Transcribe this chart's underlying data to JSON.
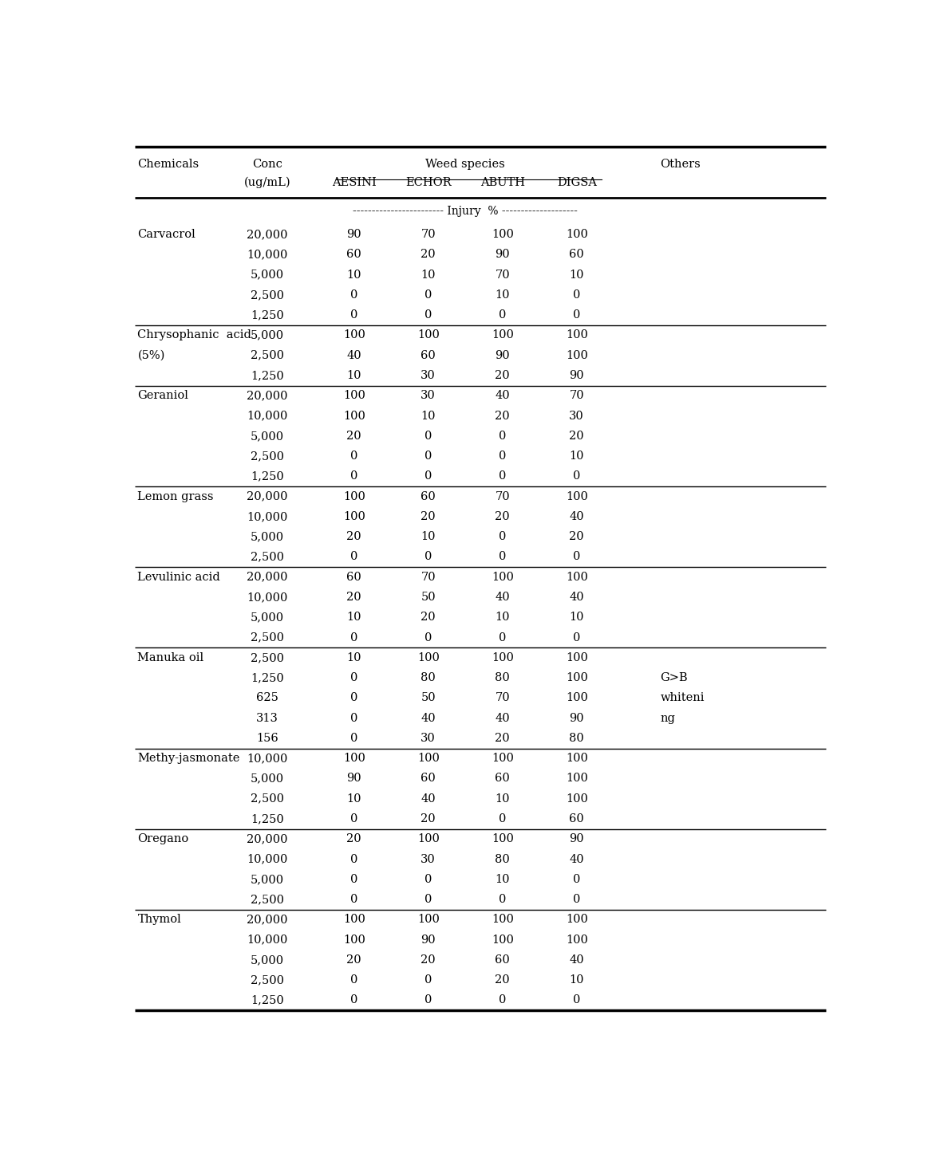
{
  "col_headers_row1": [
    "Chemicals",
    "Conc",
    "Weed species",
    "Others"
  ],
  "col_headers_row2": [
    "",
    "(ug/mL)",
    "AESINI",
    "ECHOR",
    "ABUTH",
    "DIGSA",
    ""
  ],
  "injury_label": "------------------------ Injury  % --------------------",
  "rows": [
    [
      "Carvacrol",
      "20,000",
      "90",
      "70",
      "100",
      "100",
      ""
    ],
    [
      "",
      "10,000",
      "60",
      "20",
      "90",
      "60",
      ""
    ],
    [
      "",
      "5,000",
      "10",
      "10",
      "70",
      "10",
      ""
    ],
    [
      "",
      "2,500",
      "0",
      "0",
      "10",
      "0",
      ""
    ],
    [
      "",
      "1,250",
      "0",
      "0",
      "0",
      "0",
      ""
    ],
    [
      "Chrysophanic  acid",
      "5,000",
      "100",
      "100",
      "100",
      "100",
      ""
    ],
    [
      "(5%)",
      "2,500",
      "40",
      "60",
      "90",
      "100",
      ""
    ],
    [
      "",
      "1,250",
      "10",
      "30",
      "20",
      "90",
      ""
    ],
    [
      "Geraniol",
      "20,000",
      "100",
      "30",
      "40",
      "70",
      ""
    ],
    [
      "",
      "10,000",
      "100",
      "10",
      "20",
      "30",
      ""
    ],
    [
      "",
      "5,000",
      "20",
      "0",
      "0",
      "20",
      ""
    ],
    [
      "",
      "2,500",
      "0",
      "0",
      "0",
      "10",
      ""
    ],
    [
      "",
      "1,250",
      "0",
      "0",
      "0",
      "0",
      ""
    ],
    [
      "Lemon grass",
      "20,000",
      "100",
      "60",
      "70",
      "100",
      ""
    ],
    [
      "",
      "10,000",
      "100",
      "20",
      "20",
      "40",
      ""
    ],
    [
      "",
      "5,000",
      "20",
      "10",
      "0",
      "20",
      ""
    ],
    [
      "",
      "2,500",
      "0",
      "0",
      "0",
      "0",
      ""
    ],
    [
      "Levulinic acid",
      "20,000",
      "60",
      "70",
      "100",
      "100",
      ""
    ],
    [
      "",
      "10,000",
      "20",
      "50",
      "40",
      "40",
      ""
    ],
    [
      "",
      "5,000",
      "10",
      "20",
      "10",
      "10",
      ""
    ],
    [
      "",
      "2,500",
      "0",
      "0",
      "0",
      "0",
      ""
    ],
    [
      "Manuka oil",
      "2,500",
      "10",
      "100",
      "100",
      "100",
      ""
    ],
    [
      "",
      "1,250",
      "0",
      "80",
      "80",
      "100",
      "G>B"
    ],
    [
      "",
      "625",
      "0",
      "50",
      "70",
      "100",
      "whiteni"
    ],
    [
      "",
      "313",
      "0",
      "40",
      "40",
      "90",
      "ng"
    ],
    [
      "",
      "156",
      "0",
      "30",
      "20",
      "80",
      ""
    ],
    [
      "Methy-jasmonate",
      "10,000",
      "100",
      "100",
      "100",
      "100",
      ""
    ],
    [
      "",
      "5,000",
      "90",
      "60",
      "60",
      "100",
      ""
    ],
    [
      "",
      "2,500",
      "10",
      "40",
      "10",
      "100",
      ""
    ],
    [
      "",
      "1,250",
      "0",
      "20",
      "0",
      "60",
      ""
    ],
    [
      "Oregano",
      "20,000",
      "20",
      "100",
      "100",
      "90",
      ""
    ],
    [
      "",
      "10,000",
      "0",
      "30",
      "80",
      "40",
      ""
    ],
    [
      "",
      "5,000",
      "0",
      "0",
      "10",
      "0",
      ""
    ],
    [
      "",
      "2,500",
      "0",
      "0",
      "0",
      "0",
      ""
    ],
    [
      "Thymol",
      "20,000",
      "100",
      "100",
      "100",
      "100",
      ""
    ],
    [
      "",
      "10,000",
      "100",
      "90",
      "100",
      "100",
      ""
    ],
    [
      "",
      "5,000",
      "20",
      "20",
      "60",
      "40",
      ""
    ],
    [
      "",
      "2,500",
      "0",
      "0",
      "20",
      "10",
      ""
    ],
    [
      "",
      "1,250",
      "0",
      "0",
      "0",
      "0",
      ""
    ]
  ],
  "group_separators_after": [
    4,
    7,
    12,
    16,
    20,
    25,
    29,
    33
  ],
  "font_size": 10.5,
  "bg_color": "#ffffff"
}
